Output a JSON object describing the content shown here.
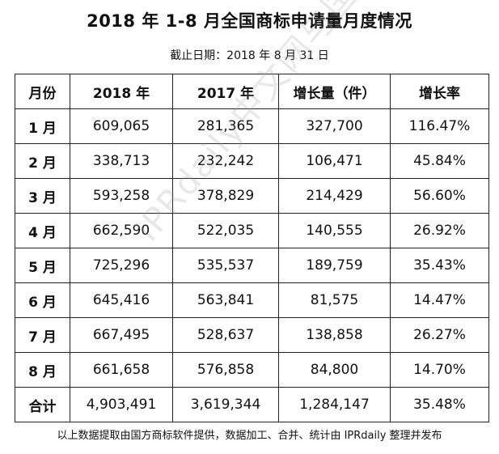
{
  "title": "2018 年 1-8 月全国商标申请量月度情况",
  "subtitle": "截止日期：2018 年 8 月 31 日",
  "table": {
    "headers": [
      "月份",
      "2018 年",
      "2017 年",
      "增长量（件）",
      "增长率"
    ],
    "rows": [
      [
        "1 月",
        "609,065",
        "281,365",
        "327,700",
        "116.47%"
      ],
      [
        "2 月",
        "338,713",
        "232,242",
        "106,471",
        "45.84%"
      ],
      [
        "3 月",
        "593,258",
        "378,829",
        "214,429",
        "56.60%"
      ],
      [
        "4 月",
        "662,590",
        "522,035",
        "140,555",
        "26.92%"
      ],
      [
        "5 月",
        "725,296",
        "535,537",
        "189,759",
        "35.43%"
      ],
      [
        "6 月",
        "645,416",
        "563,841",
        "81,575",
        "14.47%"
      ],
      [
        "7 月",
        "667,495",
        "528,637",
        "138,858",
        "26.27%"
      ],
      [
        "8 月",
        "661,658",
        "576,858",
        "84,800",
        "14.70%"
      ],
      [
        "合计",
        "4,903,491",
        "3,619,344",
        "1,284,147",
        "35.48%"
      ]
    ]
  },
  "footer": "以上数据提取由国方商标软件提供，数据加工、合并、统计由 IPRdaily 整理并发布",
  "watermark": "IPRdaily中文网与国方商标软件联合发布"
}
